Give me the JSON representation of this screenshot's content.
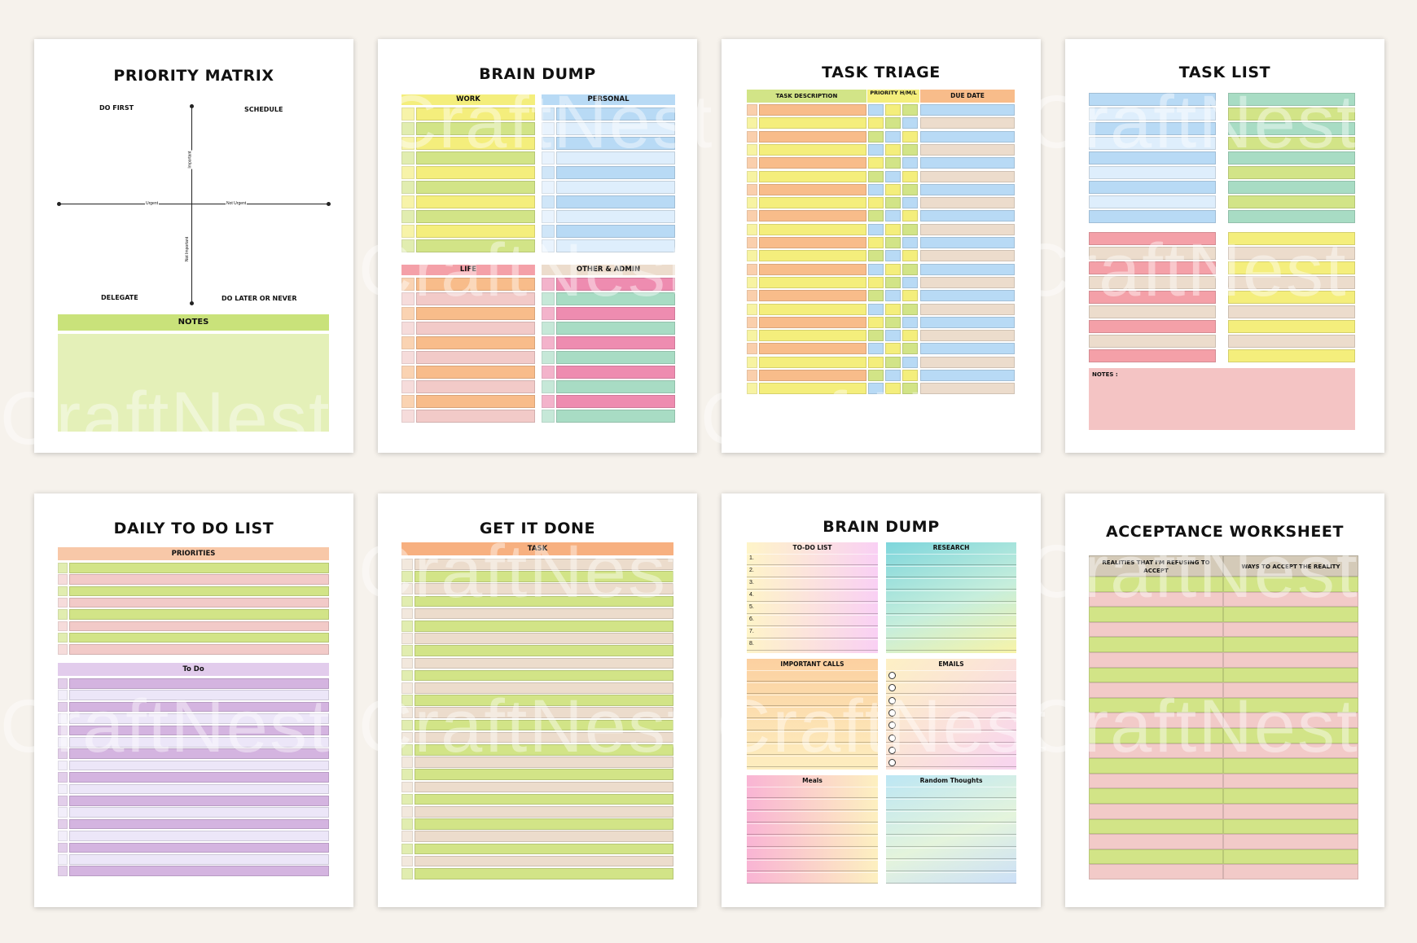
{
  "watermark": "CraftNest",
  "pages": {
    "priority_matrix": {
      "title": "PRIORITY MATRIX",
      "do_first": "DO FIRST",
      "schedule": "SCHEDULE",
      "delegate": "DELEGATE",
      "do_later": "DO LATER OR NEVER",
      "axis_urgent": "Urgent",
      "axis_not_urgent": "Not Urgent",
      "axis_important": "Important",
      "axis_not_important": "Not Important",
      "notes": "NOTES"
    },
    "brain_dump_1": {
      "title": "BRAIN DUMP",
      "work": "WORK",
      "personal": "PERSONAL",
      "life": "LIFE",
      "other_admin": "OTHER & ADMIN"
    },
    "task_triage": {
      "title": "TASK TRIAGE",
      "task_description": "TASK DESCRIPTION",
      "priority": "PRIORITY H/M/L",
      "due_date": "DUE DATE"
    },
    "task_list": {
      "title": "TASK LIST",
      "notes": "NOTES :"
    },
    "daily_todo": {
      "title": "DAILY TO DO LIST",
      "priorities": "PRIORITIES",
      "todo": "To Do"
    },
    "get_it_done": {
      "title": "GET IT DONE",
      "task": "TASK"
    },
    "brain_dump_2": {
      "title": "BRAIN DUMP",
      "todo_list": "TO-DO LIST",
      "research": "RESEARCH",
      "important_calls": "IMPORTANT CALLS",
      "emails": "EMAILS",
      "meals": "Meals",
      "random_thoughts": "Random Thoughts",
      "numbers": [
        "1.",
        "2.",
        "3.",
        "4.",
        "5.",
        "6.",
        "7.",
        "8."
      ]
    },
    "acceptance": {
      "title": "ACCEPTANCE WORKSHEET",
      "col1": "REALITIES THAT I'M REFUSING TO ACCEPT",
      "col2": "WAYS TO ACCEPT THE REALITY"
    }
  },
  "colors": {
    "background": "#f6f2ec",
    "green": "#d2e487",
    "yellow": "#f4ee7c",
    "blue": "#b8daf5",
    "pale_blue": "#deeefc",
    "red": "#f4a0a8",
    "orange": "#f8bc8a",
    "pink": "#f2cac8",
    "mint": "#a8dcc4",
    "magenta": "#ee8cb0",
    "beige": "#ecdccc",
    "purple": "#d4b4e0",
    "lavender": "#ece6f8"
  }
}
